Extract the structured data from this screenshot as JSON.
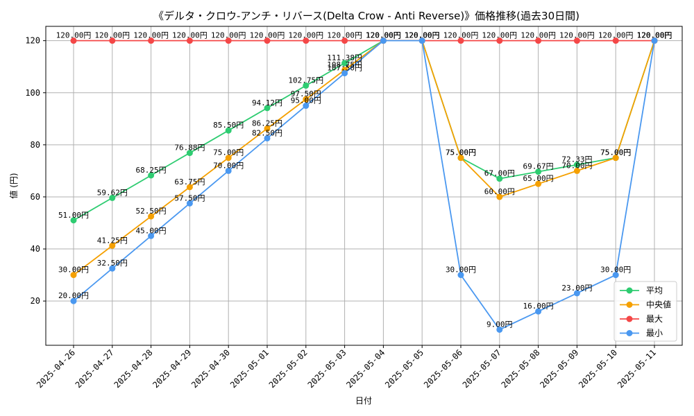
{
  "chart_data": {
    "type": "line",
    "title": "《デルタ・クロウ-アンチ・リバース(Delta Crow - Anti Reverse)》価格推移(過去30日間)",
    "xlabel": "日付",
    "ylabel": "値 (円)",
    "ylim": [
      3,
      125.5
    ],
    "yticks": [
      20,
      40,
      60,
      80,
      100,
      120
    ],
    "grid": true,
    "legend_position": "lower-right",
    "value_suffix": "円",
    "categories": [
      "2025-04-26",
      "2025-04-27",
      "2025-04-28",
      "2025-04-29",
      "2025-04-30",
      "2025-05-01",
      "2025-05-02",
      "2025-05-03",
      "2025-05-04",
      "2025-05-05",
      "2025-05-06",
      "2025-05-07",
      "2025-05-08",
      "2025-05-09",
      "2025-05-10",
      "2025-05-11"
    ],
    "series": [
      {
        "name": "平均",
        "color": "#2ecc71",
        "values": [
          51.0,
          59.62,
          68.25,
          76.88,
          85.5,
          94.12,
          102.75,
          111.38,
          120.0,
          120.0,
          75.0,
          67.0,
          69.67,
          72.33,
          75.0,
          120.0
        ]
      },
      {
        "name": "中央値",
        "color": "#f5a000",
        "values": [
          30.0,
          41.25,
          52.5,
          63.75,
          75.0,
          86.25,
          97.5,
          108.75,
          120.0,
          120.0,
          75.0,
          60.0,
          65.0,
          70.0,
          75.0,
          120.0
        ]
      },
      {
        "name": "最大",
        "color": "#f44747",
        "values": [
          120.0,
          120.0,
          120.0,
          120.0,
          120.0,
          120.0,
          120.0,
          120.0,
          120.0,
          120.0,
          120.0,
          120.0,
          120.0,
          120.0,
          120.0,
          120.0
        ]
      },
      {
        "name": "最小",
        "color": "#4a98f0",
        "values": [
          20.0,
          32.5,
          45.0,
          57.5,
          70.0,
          82.5,
          95.0,
          107.5,
          120.0,
          120.0,
          30.0,
          9.0,
          16.0,
          23.0,
          30.0,
          120.0
        ]
      }
    ]
  }
}
